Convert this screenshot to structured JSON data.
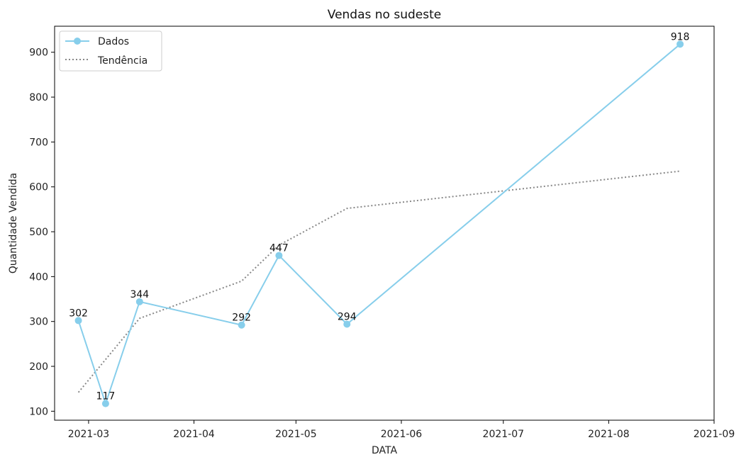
{
  "chart_data": {
    "type": "line",
    "title": "Vendas no sudeste",
    "xlabel": "DATA",
    "ylabel": "Quantidade Vendida",
    "x_tick_labels": [
      "2021-03",
      "2021-04",
      "2021-05",
      "2021-06",
      "2021-07",
      "2021-08",
      "2021-09"
    ],
    "x_ticks": [
      "2021-03-01",
      "2021-04-01",
      "2021-05-01",
      "2021-06-01",
      "2021-07-01",
      "2021-08-01",
      "2021-09-01"
    ],
    "xlim": [
      "2021-02-19",
      "2021-09-01"
    ],
    "y_ticks": [
      100,
      200,
      300,
      400,
      500,
      600,
      700,
      800,
      900
    ],
    "ylim": [
      80,
      958
    ],
    "legend": {
      "position": "top-left"
    },
    "grid": false,
    "series": [
      {
        "name": "Dados",
        "style": "solid-marker",
        "color": "#87ceeb",
        "x": [
          "2021-02-26",
          "2021-03-06",
          "2021-03-16",
          "2021-04-15",
          "2021-04-26",
          "2021-05-16",
          "2021-08-22"
        ],
        "values": [
          302,
          117,
          344,
          292,
          447,
          294,
          918
        ],
        "data_labels": [
          "302",
          "117",
          "344",
          "292",
          "447",
          "294",
          "918"
        ]
      },
      {
        "name": "Tendência",
        "style": "dotted",
        "color": "#888888",
        "x": [
          "2021-02-26",
          "2021-03-16",
          "2021-04-15",
          "2021-04-26",
          "2021-05-16",
          "2021-08-22"
        ],
        "values": [
          142,
          307,
          390,
          470,
          552,
          635
        ]
      }
    ]
  }
}
